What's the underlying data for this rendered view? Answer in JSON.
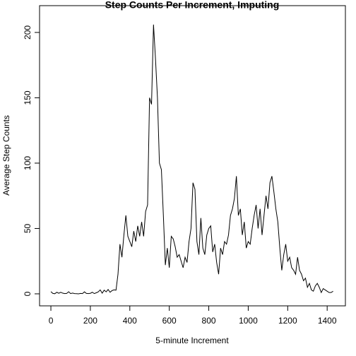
{
  "chart_data": {
    "type": "line",
    "title": "Step Counts Per Increment, Imputing",
    "x_label": "5-minute Increment",
    "y_label": "Average Step Counts",
    "color": "#000000",
    "xlim": [
      -57.4,
      1492.4
    ],
    "ylim": [
      -9.2,
      220.5
    ],
    "xticks": [
      0,
      200,
      400,
      600,
      800,
      1000,
      1200,
      1400
    ],
    "yticks": [
      0,
      50,
      100,
      150,
      200
    ],
    "x": [
      0,
      10,
      20,
      30,
      40,
      50,
      60,
      70,
      80,
      90,
      100,
      110,
      120,
      130,
      140,
      150,
      160,
      170,
      180,
      190,
      200,
      210,
      220,
      230,
      240,
      250,
      260,
      270,
      280,
      290,
      300,
      310,
      320,
      330,
      340,
      350,
      360,
      370,
      380,
      390,
      400,
      410,
      420,
      430,
      440,
      450,
      460,
      470,
      480,
      490,
      500,
      510,
      520,
      530,
      540,
      550,
      560,
      570,
      580,
      590,
      600,
      610,
      620,
      630,
      640,
      650,
      660,
      670,
      680,
      690,
      700,
      710,
      720,
      730,
      740,
      750,
      760,
      770,
      780,
      790,
      800,
      810,
      820,
      830,
      840,
      850,
      860,
      870,
      880,
      890,
      900,
      910,
      920,
      930,
      940,
      950,
      960,
      970,
      980,
      990,
      1000,
      1010,
      1020,
      1030,
      1040,
      1050,
      1060,
      1070,
      1080,
      1090,
      1100,
      1110,
      1120,
      1130,
      1140,
      1150,
      1160,
      1170,
      1180,
      1190,
      1200,
      1210,
      1220,
      1230,
      1240,
      1250,
      1260,
      1270,
      1280,
      1290,
      1300,
      1310,
      1320,
      1330,
      1340,
      1350,
      1360,
      1370,
      1380,
      1390,
      1400,
      1410,
      1420,
      1430
    ],
    "values": [
      1.7,
      0.3,
      0.1,
      1.2,
      0.4,
      1.2,
      0.5,
      0.2,
      0.3,
      1.6,
      0.2,
      0.6,
      0.2,
      0.1,
      0,
      0.3,
      0.2,
      1.5,
      0.3,
      0.2,
      0.4,
      1.2,
      0.2,
      0.8,
      1.5,
      3,
      0.5,
      2.8,
      1.5,
      3.3,
      1.2,
      2.5,
      3,
      2.8,
      15,
      38,
      28,
      45,
      60,
      44,
      40,
      36,
      48,
      40,
      52,
      44,
      55,
      44,
      63,
      68,
      150,
      145,
      206,
      180,
      150,
      100,
      95,
      60,
      22,
      35,
      20,
      44,
      42,
      36,
      28,
      30,
      25,
      20,
      28,
      24,
      40,
      50,
      85,
      80,
      40,
      30,
      58,
      35,
      30,
      45,
      50,
      52,
      32,
      38,
      24,
      15,
      35,
      30,
      40,
      38,
      45,
      60,
      65,
      73,
      90,
      60,
      65,
      45,
      55,
      35,
      40,
      38,
      50,
      60,
      68,
      50,
      65,
      45,
      60,
      75,
      65,
      85,
      90,
      78,
      65,
      55,
      35,
      18,
      30,
      38,
      25,
      28,
      20,
      18,
      15,
      28,
      18,
      15,
      10,
      12,
      5,
      8,
      3,
      2,
      6,
      8,
      5,
      1,
      4,
      3,
      2,
      1,
      1,
      2
    ]
  }
}
